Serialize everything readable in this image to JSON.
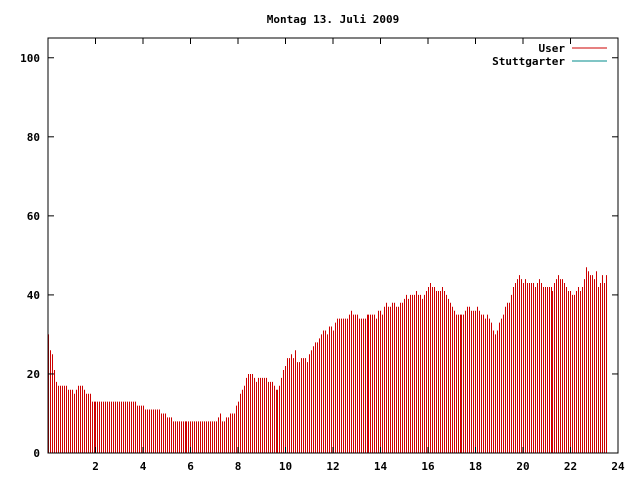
{
  "chart_data": {
    "type": "bar",
    "title": "Montag 13. Juli 2009",
    "xlabel": "",
    "ylabel": "",
    "xlim": [
      0,
      24
    ],
    "ylim": [
      0,
      105
    ],
    "x_ticks": [
      2,
      4,
      6,
      8,
      10,
      12,
      14,
      16,
      18,
      20,
      22,
      24
    ],
    "y_ticks": [
      0,
      20,
      40,
      60,
      80,
      100
    ],
    "grid": false,
    "legend_position": "top-right",
    "series": [
      {
        "name": "User",
        "color": "#cc0000",
        "x_start": 0,
        "x_step": 0.0833,
        "values": [
          30,
          26,
          25,
          21,
          18,
          17,
          17,
          17,
          17,
          17,
          16,
          16,
          16,
          15,
          16,
          17,
          17,
          17,
          16,
          15,
          15,
          15,
          13,
          13,
          13,
          13,
          13,
          13,
          13,
          13,
          13,
          13,
          13,
          13,
          13,
          13,
          13,
          13,
          13,
          13,
          13,
          13,
          13,
          13,
          13,
          12,
          12,
          12,
          12,
          11,
          11,
          11,
          11,
          11,
          11,
          11,
          11,
          10,
          10,
          10,
          9,
          9,
          9,
          8,
          8,
          8,
          8,
          8,
          8,
          8,
          8,
          8,
          8,
          8,
          8,
          8,
          8,
          8,
          8,
          8,
          8,
          8,
          8,
          8,
          8,
          8,
          9,
          10,
          8,
          8,
          9,
          9,
          10,
          10,
          10,
          12,
          13,
          15,
          16,
          17,
          19,
          20,
          20,
          20,
          19,
          18,
          19,
          19,
          19,
          19,
          19,
          18,
          18,
          18,
          17,
          16,
          16,
          17,
          19,
          21,
          22,
          24,
          24,
          25,
          24,
          26,
          23,
          23,
          24,
          24,
          24,
          23,
          25,
          26,
          27,
          28,
          28,
          29,
          30,
          31,
          31,
          30,
          32,
          32,
          31,
          33,
          34,
          34,
          34,
          34,
          34,
          34,
          35,
          36,
          35,
          35,
          35,
          34,
          34,
          34,
          34,
          35,
          35,
          35,
          35,
          35,
          34,
          36,
          36,
          35,
          37,
          38,
          37,
          37,
          38,
          38,
          37,
          37,
          38,
          38,
          39,
          40,
          39,
          40,
          40,
          40,
          41,
          40,
          40,
          39,
          40,
          41,
          42,
          43,
          42,
          42,
          41,
          41,
          41,
          42,
          41,
          40,
          39,
          38,
          37,
          36,
          35,
          35,
          35,
          35,
          35,
          36,
          37,
          37,
          36,
          36,
          36,
          37,
          36,
          35,
          35,
          34,
          35,
          34,
          33,
          31,
          30,
          31,
          33,
          34,
          35,
          37,
          38,
          38,
          40,
          42,
          43,
          44,
          45,
          44,
          43,
          44,
          43,
          43,
          43,
          43,
          42,
          43,
          44,
          43,
          42,
          42,
          42,
          42,
          42,
          41,
          43,
          44,
          45,
          44,
          44,
          43,
          42,
          41,
          41,
          40,
          40,
          41,
          42,
          41,
          42,
          44,
          47,
          46,
          45,
          45,
          44,
          46,
          42,
          43,
          45,
          43,
          45
        ]
      },
      {
        "name": "Stuttgarter",
        "color": "#008b8b",
        "values": []
      }
    ]
  }
}
